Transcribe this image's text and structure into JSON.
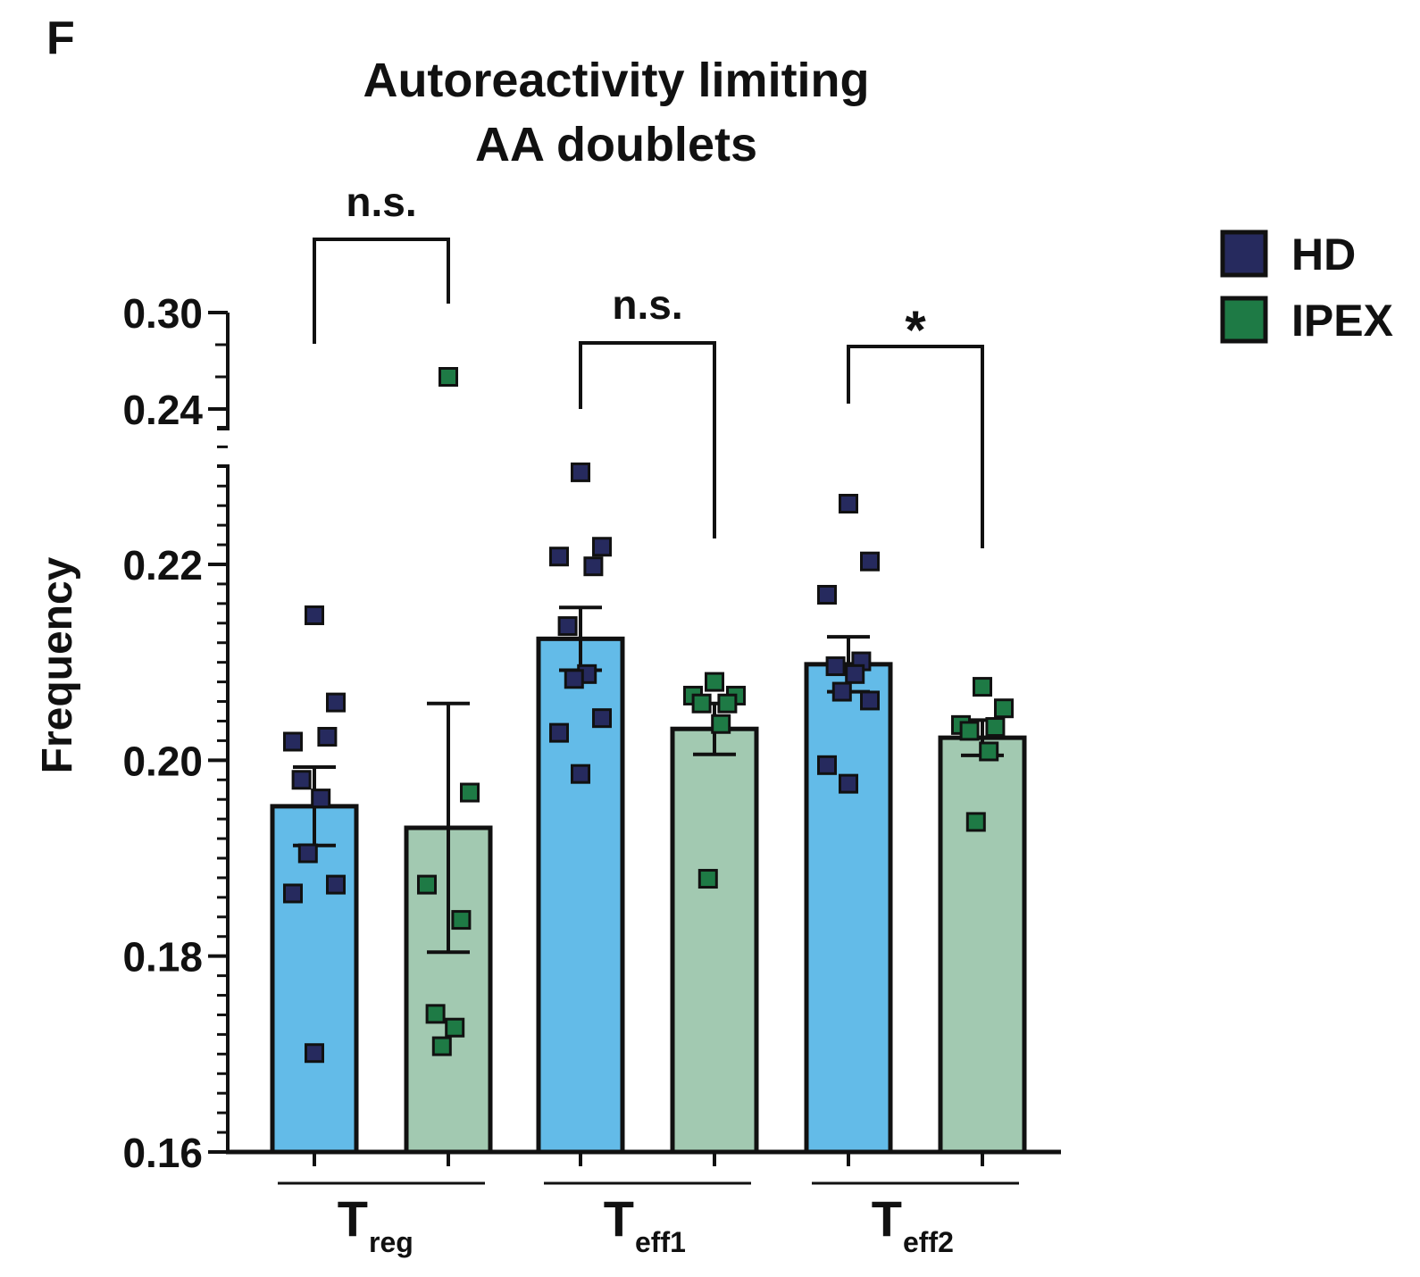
{
  "panel_label": "F",
  "chart_data": {
    "type": "bar",
    "title_lines": [
      "Autoreactivity limiting",
      "AA doublets"
    ],
    "ylabel": "Frequency",
    "y_axis": {
      "lower_segment": {
        "range": [
          0.16,
          0.234
        ],
        "ticks": [
          "0.16",
          "0.18",
          "0.20",
          "0.22"
        ],
        "minor_step": 0.002
      },
      "upper_segment": {
        "range": [
          0.22,
          0.32
        ],
        "ticks": [
          "0.24",
          "0.30"
        ],
        "minor_step": 0.02
      },
      "broken": true
    },
    "groups": [
      {
        "label_main": "T",
        "label_sub": "reg"
      },
      {
        "label_main": "T",
        "label_sub": "eff1"
      },
      {
        "label_main": "T",
        "label_sub": "eff2"
      }
    ],
    "legend": {
      "placement": "top-right",
      "entries": [
        {
          "name": "HD",
          "color": "#262a5e"
        },
        {
          "name": "IPEX",
          "color": "#1e7a45"
        }
      ]
    },
    "series": [
      {
        "name": "HD",
        "bar_color": "#63bbe8",
        "marker_color": "#262a5e",
        "means": [
          0.1953,
          0.2124,
          0.2098
        ],
        "sem": [
          0.004,
          0.0032,
          0.0028
        ],
        "points": [
          [
            0.2148,
            0.2059,
            0.2019,
            0.2024,
            0.198,
            0.1961,
            0.1905,
            0.1873,
            0.1864,
            0.1701
          ],
          [
            0.2294,
            0.2218,
            0.2208,
            0.2198,
            0.2137,
            0.2088,
            0.2083,
            0.2043,
            0.2028,
            0.1986
          ],
          [
            0.2262,
            0.2203,
            0.2169,
            0.2101,
            0.2096,
            0.2088,
            0.207,
            0.2061,
            0.1995,
            0.1976
          ]
        ]
      },
      {
        "name": "IPEX",
        "bar_color": "#a2c9b1",
        "marker_color": "#1e7a45",
        "means": [
          0.1931,
          0.2032,
          0.2023
        ],
        "sem": [
          0.0127,
          0.0026,
          0.0018
        ],
        "points": [
          [
            0.26,
            0.1967,
            0.1873,
            0.1837,
            0.1741,
            0.1727,
            0.1708
          ],
          [
            0.208,
            0.2066,
            0.2066,
            0.2058,
            0.2058,
            0.2037,
            0.1879
          ],
          [
            0.2075,
            0.2053,
            0.2036,
            0.2034,
            0.203,
            0.2009,
            0.1937
          ]
        ]
      }
    ],
    "significance": [
      {
        "group": 0,
        "label": "n.s."
      },
      {
        "group": 1,
        "label": "n.s."
      },
      {
        "group": 2,
        "label": "*"
      }
    ]
  }
}
